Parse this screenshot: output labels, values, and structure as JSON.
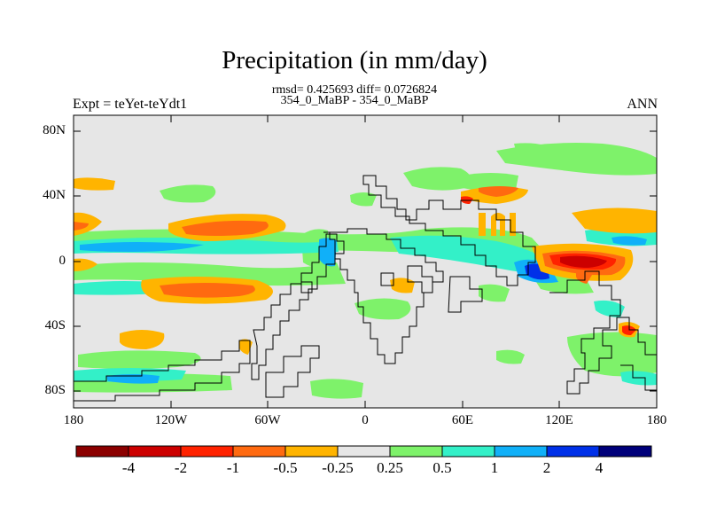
{
  "title": "Precipitation (in mm/day)",
  "stats_line": "rmsd= 0.425693 diff= 0.0726824",
  "case_line": "354_0_MaBP - 354_0_MaBP",
  "left_string": "Expt = teYet-teYdt1",
  "right_string": "ANN",
  "lat_ticks": [
    "80N",
    "40N",
    "0",
    "40S",
    "80S"
  ],
  "lon_ticks": [
    "180",
    "120W",
    "60W",
    "0",
    "60E",
    "120E",
    "180"
  ],
  "colorbar": {
    "labels": [
      "-4",
      "-2",
      "-1",
      "-0.5",
      "-0.25",
      "0.25",
      "0.5",
      "1",
      "2",
      "4"
    ],
    "colors": [
      "#8b0000",
      "#cc0000",
      "#ff2200",
      "#ff6a10",
      "#ffb400",
      "#e6e6e6",
      "#7ef26a",
      "#33f0c8",
      "#10b0f8",
      "#0030e8",
      "#00007a"
    ]
  },
  "colors": {
    "background_field": "#e6e6e6",
    "coastline": "#000000"
  }
}
